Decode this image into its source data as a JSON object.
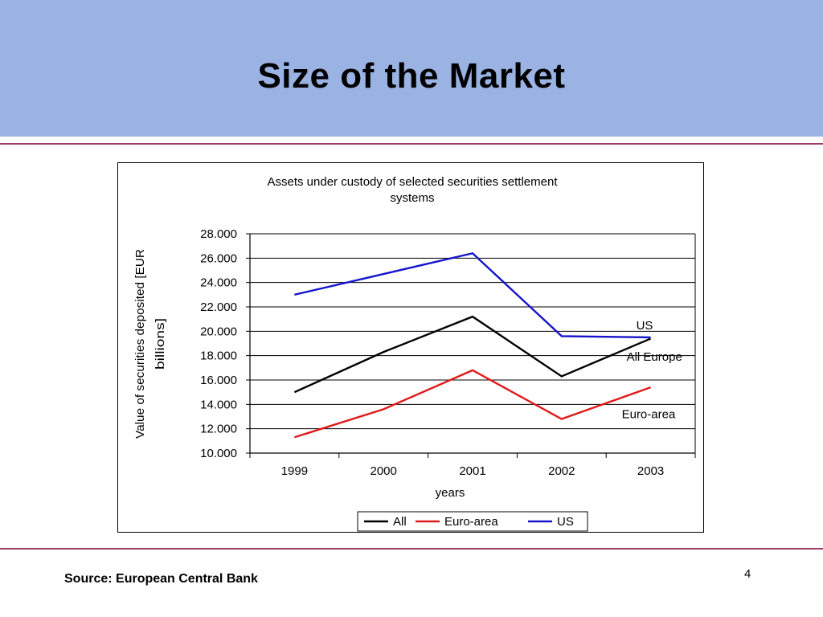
{
  "slide": {
    "title": "Size of the Market",
    "source": "Source: European Central Bank",
    "page_number": "4"
  },
  "colors": {
    "header_band": "#9ab3e3",
    "rule": "#9e3b63",
    "all": "#000000",
    "euro_area": "#e01b1b",
    "us": "#1414cc"
  },
  "chart_data": {
    "type": "line",
    "title_lines": [
      "Assets under custody of selected securities settlement",
      "systems"
    ],
    "xlabel": "years",
    "ylabel_lines": [
      "Value of securities deposited [EUR",
      "billions]"
    ],
    "categories": [
      "1999",
      "2000",
      "2001",
      "2002",
      "2003"
    ],
    "ylim": [
      10000,
      28000
    ],
    "yticks": [
      10000,
      12000,
      14000,
      16000,
      18000,
      20000,
      22000,
      24000,
      26000,
      28000
    ],
    "ytick_labels": [
      "10.000",
      "12.000",
      "14.000",
      "16.000",
      "18.000",
      "20.000",
      "22.000",
      "24.000",
      "26.000",
      "28.000"
    ],
    "grid": true,
    "legend_position": "bottom",
    "series": [
      {
        "name": "All",
        "color": "#000000",
        "values": [
          15000,
          18300,
          21200,
          16300,
          19400
        ]
      },
      {
        "name": "Euro-area",
        "color": "#e01b1b",
        "values": [
          11300,
          13600,
          16800,
          12800,
          15400
        ]
      },
      {
        "name": "US",
        "color": "#1414cc",
        "values": [
          23000,
          24700,
          26400,
          19600,
          19500
        ]
      }
    ],
    "annotations": [
      {
        "text": "US",
        "x": "2003",
        "y": 20500
      },
      {
        "text": "All Europe",
        "x": "2003",
        "y": 17900
      },
      {
        "text": "Euro-area",
        "x": "2003",
        "y": 13200
      }
    ]
  }
}
